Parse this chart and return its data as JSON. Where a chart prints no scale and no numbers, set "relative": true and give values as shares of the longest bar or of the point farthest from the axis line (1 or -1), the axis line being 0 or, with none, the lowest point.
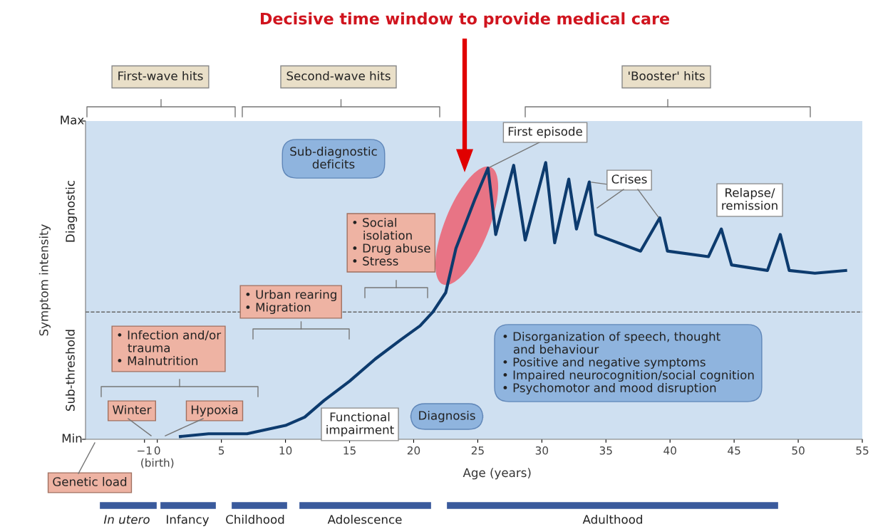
{
  "chart_data": {
    "type": "line",
    "title": "Decisive time window to provide medical care",
    "xlabel": "Age (years)",
    "ylabel": "Symptom intensity",
    "xlim": [
      -5.6,
      55
    ],
    "relative": true,
    "xticks": [
      {
        "value": -1,
        "label": "−1"
      },
      {
        "value": 0,
        "label": "0\n(birth)"
      },
      5,
      10,
      15,
      20,
      25,
      30,
      35,
      40,
      45,
      50,
      55
    ],
    "x": [
      1.8,
      4,
      7,
      10,
      11.5,
      13,
      15,
      17,
      19,
      20.5,
      21.5,
      22.5,
      23.3,
      24.8,
      25.8,
      26.4,
      27.8,
      28.7,
      30.3,
      31,
      32.1,
      32.7,
      33.7,
      34.2,
      37.7,
      39.2,
      39.8,
      43,
      44,
      44.8,
      47.6,
      48.6,
      49.3,
      51.3,
      53.7
    ],
    "series": [
      {
        "color": "#0d3b6e",
        "values": [
          0.01,
          0.02,
          0.02,
          0.05,
          0.08,
          0.14,
          0.21,
          0.29,
          0.36,
          0.41,
          0.46,
          0.53,
          0.69,
          0.87,
          0.98,
          0.74,
          0.99,
          0.72,
          1.0,
          0.71,
          0.94,
          0.76,
          0.93,
          0.74,
          0.68,
          0.8,
          0.68,
          0.66,
          0.76,
          0.63,
          0.61,
          0.74,
          0.61,
          0.6,
          0.61
        ]
      }
    ],
    "ref_lines": [
      {
        "axis": "y",
        "value": 0.46,
        "color": "#666666",
        "line_style": "dashed"
      }
    ],
    "grid": false,
    "legend": false,
    "marker": "none",
    "line_style": "solid",
    "annotations": [
      "First-wave hits",
      "Second-wave hits",
      "'Booster' hits",
      "Sub-diagnostic\ndeficits",
      {
        "text": "First episode",
        "x": 25.8,
        "y": 0.98
      },
      {
        "text": "Crises",
        "x": 33.7,
        "y": 0.93
      },
      "Relapse/\nremission",
      "• Social\n   isolation\n• Drug abuse\n• Stress",
      "• Urban rearing\n• Migration",
      "• Infection and/or\n   trauma\n• Malnutrition",
      "Functional\nimpairment",
      "Diagnosis",
      "• Disorganization of speech, thought\n   and behaviour\n• Positive and negative symptoms\n• Impaired neurocognition/social cognition\n• Psychomotor and mood disruption",
      "Winter",
      "Hypoxia",
      "Genetic load",
      "Diagnostic",
      "Sub-threshold",
      "Min",
      "Max",
      "In utero",
      "Infancy",
      "Childhood",
      "Adolescence",
      "Adulthood"
    ]
  }
}
